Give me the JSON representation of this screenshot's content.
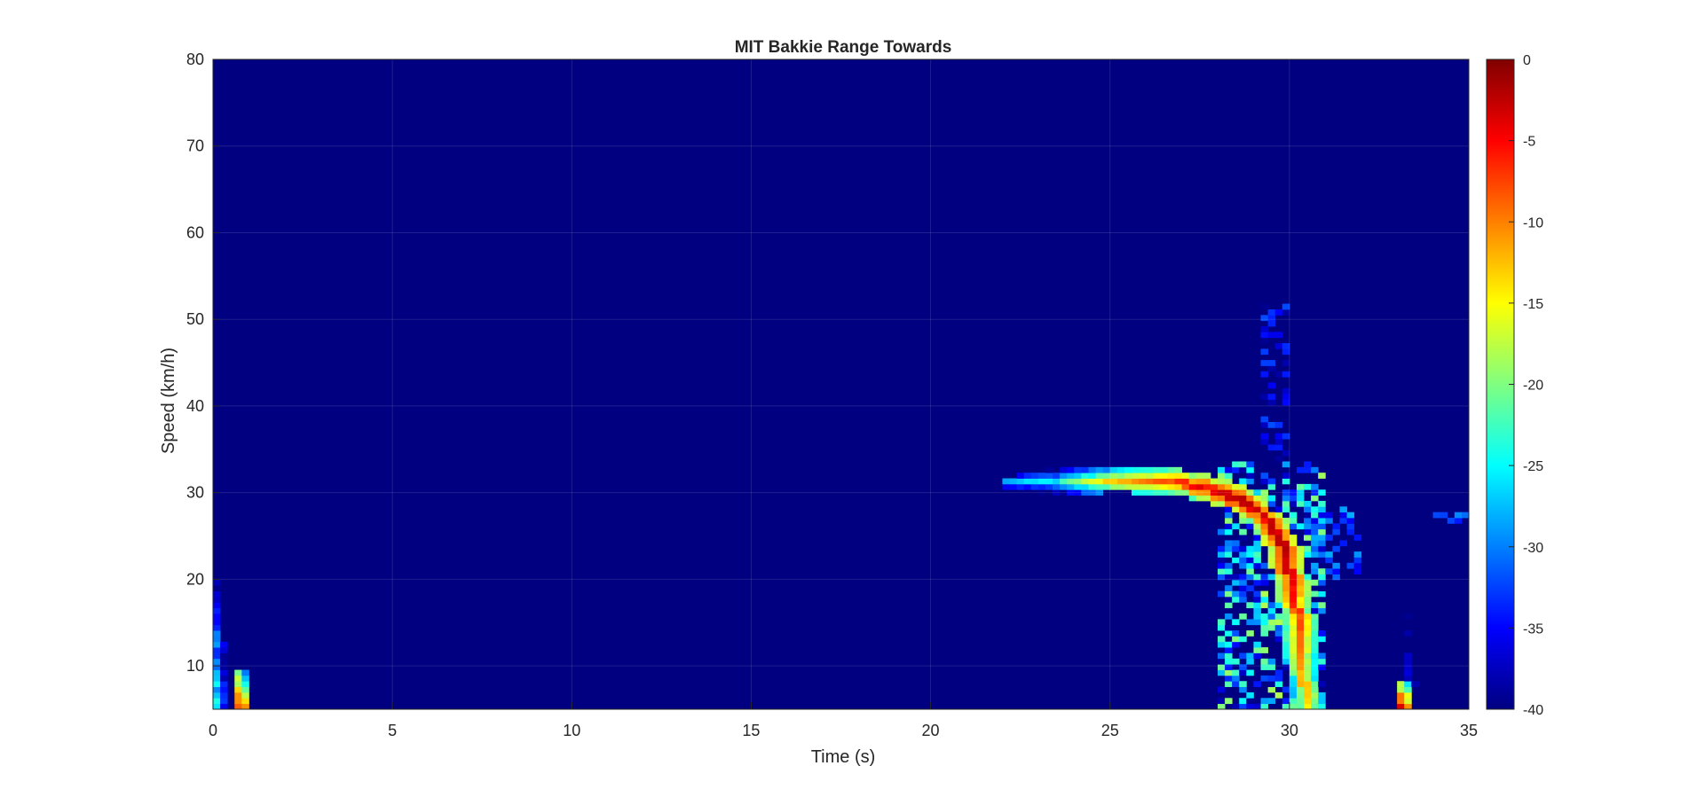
{
  "chart_data": {
    "type": "heatmap",
    "title": "MIT Bakkie Range Towards",
    "xlabel": "Time (s)",
    "ylabel": "Speed (km/h)",
    "xlim": [
      0,
      35
    ],
    "ylim": [
      5,
      80
    ],
    "xticks": [
      0,
      5,
      10,
      15,
      20,
      25,
      30,
      35
    ],
    "yticks": [
      10,
      20,
      30,
      40,
      50,
      60,
      70,
      80
    ],
    "colorbar": {
      "colormap": "jet",
      "clim": [
        -40,
        0
      ],
      "ticks": [
        0,
        -5,
        -10,
        -15,
        -20,
        -25,
        -30,
        -35,
        -40
      ]
    },
    "background_level_db": -40,
    "grid": true,
    "features": [
      {
        "kind": "track",
        "points": [
          [
            22.0,
            31.0
          ],
          [
            23.5,
            31.2
          ],
          [
            25.0,
            31.6
          ],
          [
            26.5,
            31.4
          ],
          [
            27.5,
            30.8
          ],
          [
            28.5,
            29.5
          ],
          [
            29.3,
            27.5
          ],
          [
            29.8,
            24.0
          ],
          [
            30.1,
            19.0
          ],
          [
            30.3,
            14.0
          ],
          [
            30.4,
            8.0
          ],
          [
            30.5,
            5.0
          ]
        ],
        "peak_db": [
          -28,
          -24,
          -12,
          -8,
          -4,
          -2,
          -3,
          -2,
          -4,
          -8,
          -12,
          -14
        ]
      },
      {
        "kind": "blob",
        "t": [
          28.0,
          31.0
        ],
        "v": [
          5,
          34
        ],
        "peak_db": -18
      },
      {
        "kind": "column",
        "t": 0.7,
        "v": [
          5,
          9
        ],
        "peak_db": -4
      },
      {
        "kind": "column",
        "t": 0.05,
        "v": [
          5,
          20
        ],
        "peak_db": -22
      },
      {
        "kind": "column",
        "t": 33.0,
        "v": [
          5,
          8
        ],
        "peak_db": -3
      },
      {
        "kind": "column",
        "t": 33.2,
        "v": [
          8,
          24
        ],
        "peak_db": -32
      },
      {
        "kind": "streak",
        "t": [
          29.4,
          30.0
        ],
        "v": [
          34,
          52
        ],
        "peak_db": -32
      },
      {
        "kind": "streak",
        "t": [
          30.5,
          31.9
        ],
        "v": [
          20,
          28
        ],
        "peak_db": -28
      },
      {
        "kind": "streak",
        "t": [
          34.0,
          35.0
        ],
        "v": [
          26.5,
          27.5
        ],
        "peak_db": -28
      }
    ]
  }
}
